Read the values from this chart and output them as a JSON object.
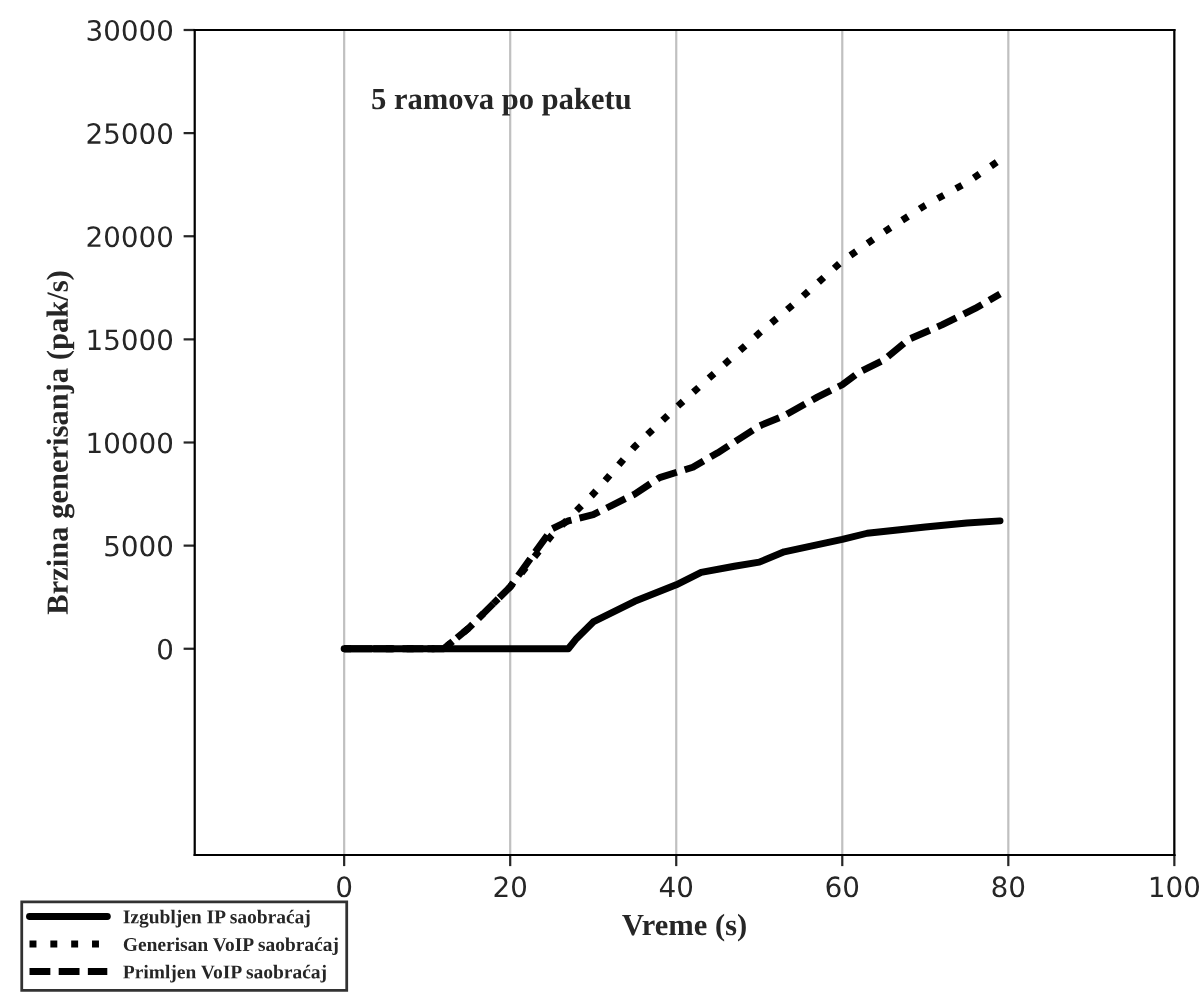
{
  "chart_data": {
    "type": "line",
    "title": "5 ramova po paketu",
    "xlabel": "Vreme (s)",
    "ylabel": "Brzina generisanja (pak/s)",
    "xlim": [
      -18,
      100
    ],
    "xticks": [
      0,
      20,
      40,
      60,
      80,
      100
    ],
    "ylim": [
      -10000,
      30000
    ],
    "yticks": [
      0,
      5000,
      10000,
      15000,
      20000,
      25000,
      30000
    ],
    "grid": "x",
    "legend": "bottom left",
    "series": [
      {
        "name": "Izgubljen IP saobraćaj",
        "color": "#000000",
        "line_style": "solid",
        "x": [
          0,
          10,
          20,
          27,
          28,
          30,
          35,
          40,
          43,
          47,
          50,
          53,
          60,
          63,
          70,
          75,
          79
        ],
        "values": [
          0,
          0,
          0,
          0,
          500,
          1300,
          2300,
          3100,
          3700,
          4000,
          4200,
          4700,
          5300,
          5600,
          5900,
          6100,
          6200
        ]
      },
      {
        "name": "Generisan VoIP saobraćaj",
        "color": "#000000",
        "line_style": "dotted",
        "x": [
          0,
          5,
          12,
          15,
          20,
          25,
          30,
          35,
          40,
          45,
          50,
          55,
          60,
          65,
          70,
          75,
          79
        ],
        "values": [
          0,
          0,
          0,
          1000,
          3000,
          5500,
          7500,
          9800,
          11700,
          13500,
          15300,
          17000,
          18800,
          20200,
          21500,
          22600,
          23700
        ]
      },
      {
        "name": "Primljen VoIP saobraćaj",
        "color": "#000000",
        "line_style": "dashed",
        "x": [
          0,
          5,
          12,
          15,
          20,
          25,
          27,
          30,
          35,
          38,
          42,
          45,
          50,
          53,
          57,
          60,
          62,
          65,
          68,
          72,
          76,
          79
        ],
        "values": [
          0,
          0,
          0,
          1000,
          3000,
          5800,
          6200,
          6500,
          7500,
          8300,
          8800,
          9500,
          10800,
          11300,
          12200,
          12800,
          13400,
          14000,
          15000,
          15700,
          16500,
          17200
        ]
      }
    ]
  }
}
